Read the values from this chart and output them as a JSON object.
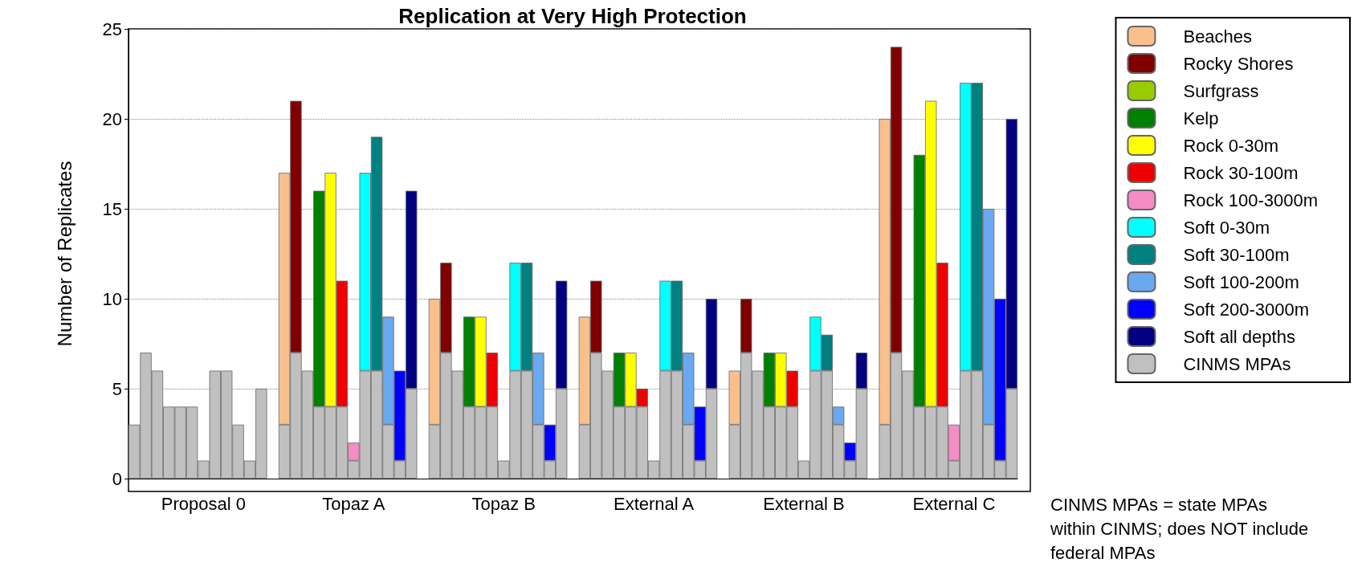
{
  "chart_data": {
    "type": "bar",
    "title": "Replication at Very High Protection",
    "ylabel": "Number of Replicates",
    "categories": [
      null,
      null,
      null,
      null,
      null,
      null,
      "Proposal 0",
      null,
      null,
      null,
      null,
      null,
      null,
      null,
      null,
      null,
      null,
      null,
      null,
      "Topaz A",
      null,
      null,
      null,
      null,
      null,
      null,
      null,
      null,
      null,
      null,
      null,
      null,
      "Topaz B",
      null,
      null,
      null,
      null,
      null,
      null,
      null,
      null,
      null,
      null,
      null,
      null,
      "External A",
      null,
      null,
      null,
      null,
      null,
      null,
      null,
      null,
      null,
      null,
      null,
      null,
      "External B",
      null,
      null,
      null,
      null,
      null,
      null,
      null,
      null,
      null,
      null,
      null,
      null,
      "External C",
      null,
      null,
      null,
      null,
      null
    ],
    "stacked": true,
    "series": [
      {
        "name": "CINMS MPAs",
        "color": "#c0c0c0",
        "values": [
          3,
          7,
          6,
          4,
          4,
          4,
          1,
          6,
          6,
          3,
          1,
          5,
          null,
          3,
          7,
          6,
          4,
          4,
          4,
          1,
          6,
          6,
          3,
          1,
          5,
          null,
          3,
          7,
          6,
          4,
          4,
          4,
          1,
          6,
          6,
          3,
          1,
          5,
          null,
          3,
          7,
          6,
          4,
          4,
          4,
          1,
          6,
          6,
          3,
          1,
          5,
          null,
          3,
          7,
          6,
          4,
          4,
          4,
          1,
          6,
          6,
          3,
          1,
          5,
          null,
          3,
          7,
          6,
          4,
          4,
          4,
          1,
          6,
          6,
          3,
          1,
          5
        ]
      },
      {
        "name": "Beaches",
        "color": "#f9c08c",
        "values": [
          null,
          null,
          null,
          null,
          null,
          null,
          null,
          null,
          null,
          null,
          null,
          null,
          null,
          14,
          null,
          null,
          null,
          null,
          null,
          null,
          null,
          null,
          null,
          null,
          null,
          null,
          7,
          null,
          null,
          null,
          null,
          null,
          null,
          null,
          null,
          null,
          null,
          null,
          null,
          6,
          null,
          null,
          null,
          null,
          null,
          null,
          null,
          null,
          null,
          null,
          null,
          null,
          3,
          null,
          null,
          null,
          null,
          null,
          null,
          null,
          null,
          null,
          null,
          null,
          null,
          17,
          null,
          null,
          null,
          null,
          null,
          null,
          null,
          null,
          null,
          null,
          null
        ]
      },
      {
        "name": "Rocky Shores",
        "color": "#800000",
        "values": [
          null,
          null,
          null,
          null,
          null,
          null,
          null,
          null,
          null,
          null,
          null,
          null,
          null,
          null,
          14,
          null,
          null,
          null,
          null,
          null,
          null,
          null,
          null,
          null,
          null,
          null,
          null,
          5,
          null,
          null,
          null,
          null,
          null,
          null,
          null,
          null,
          null,
          null,
          null,
          null,
          4,
          null,
          null,
          null,
          null,
          null,
          null,
          null,
          null,
          null,
          null,
          null,
          null,
          3,
          null,
          null,
          null,
          null,
          null,
          null,
          null,
          null,
          null,
          null,
          null,
          null,
          17,
          null,
          null,
          null,
          null,
          null,
          null,
          null,
          null,
          null,
          null
        ]
      },
      {
        "name": "Surfgrass",
        "color": "#99cc00",
        "values": [
          null,
          null,
          null,
          null,
          null,
          null,
          null,
          null,
          null,
          null,
          null,
          null,
          null,
          null,
          null,
          null,
          null,
          null,
          null,
          null,
          null,
          null,
          null,
          null,
          null,
          null,
          null,
          null,
          null,
          null,
          null,
          null,
          null,
          null,
          null,
          null,
          null,
          null,
          null,
          null,
          null,
          null,
          null,
          null,
          null,
          null,
          null,
          null,
          null,
          null,
          null,
          null,
          null,
          null,
          null,
          null,
          null,
          null,
          null,
          null,
          null,
          null,
          null,
          null,
          null,
          null,
          null,
          null,
          null,
          null,
          null,
          null,
          null,
          null,
          null,
          null,
          null
        ]
      },
      {
        "name": "Kelp",
        "color": "#008000",
        "values": [
          null,
          null,
          null,
          null,
          null,
          null,
          null,
          null,
          null,
          null,
          null,
          null,
          null,
          null,
          null,
          null,
          12,
          null,
          null,
          null,
          null,
          null,
          null,
          null,
          null,
          null,
          null,
          null,
          null,
          5,
          null,
          null,
          null,
          null,
          null,
          null,
          null,
          null,
          null,
          null,
          null,
          null,
          3,
          null,
          null,
          null,
          null,
          null,
          null,
          null,
          null,
          null,
          null,
          null,
          null,
          3,
          null,
          null,
          null,
          null,
          null,
          null,
          null,
          null,
          null,
          null,
          null,
          null,
          14,
          null,
          null,
          null,
          null,
          null,
          null,
          null,
          null
        ]
      },
      {
        "name": "Rock 0-30m",
        "color": "#ffff00",
        "values": [
          null,
          null,
          null,
          null,
          null,
          null,
          null,
          null,
          null,
          null,
          null,
          null,
          null,
          null,
          null,
          null,
          null,
          13,
          null,
          null,
          null,
          null,
          null,
          null,
          null,
          null,
          null,
          null,
          null,
          null,
          5,
          null,
          null,
          null,
          null,
          null,
          null,
          null,
          null,
          null,
          null,
          null,
          null,
          3,
          null,
          null,
          null,
          null,
          null,
          null,
          null,
          null,
          null,
          null,
          null,
          null,
          3,
          null,
          null,
          null,
          null,
          null,
          null,
          null,
          null,
          null,
          null,
          null,
          null,
          17,
          null,
          null,
          null,
          null,
          null,
          null,
          null
        ]
      },
      {
        "name": "Rock 30-100m",
        "color": "#ee0000",
        "values": [
          null,
          null,
          null,
          null,
          null,
          null,
          null,
          null,
          null,
          null,
          null,
          null,
          null,
          null,
          null,
          null,
          null,
          null,
          7,
          null,
          null,
          null,
          null,
          null,
          null,
          null,
          null,
          null,
          null,
          null,
          null,
          3,
          null,
          null,
          null,
          null,
          null,
          null,
          null,
          null,
          null,
          null,
          null,
          null,
          1,
          null,
          null,
          null,
          null,
          null,
          null,
          null,
          null,
          null,
          null,
          null,
          null,
          2,
          null,
          null,
          null,
          null,
          null,
          null,
          null,
          null,
          null,
          null,
          null,
          null,
          8,
          null,
          null,
          null,
          null,
          null,
          null
        ]
      },
      {
        "name": "Rock 100-3000m",
        "color": "#f58cc4",
        "values": [
          null,
          null,
          null,
          null,
          null,
          null,
          null,
          null,
          null,
          null,
          null,
          null,
          null,
          null,
          null,
          null,
          null,
          null,
          null,
          1,
          null,
          null,
          null,
          null,
          null,
          null,
          null,
          null,
          null,
          null,
          null,
          null,
          null,
          null,
          null,
          null,
          null,
          null,
          null,
          null,
          null,
          null,
          null,
          null,
          null,
          null,
          null,
          null,
          null,
          null,
          null,
          null,
          null,
          null,
          null,
          null,
          null,
          null,
          null,
          null,
          null,
          null,
          null,
          null,
          null,
          null,
          null,
          null,
          null,
          null,
          null,
          2,
          null,
          null,
          null,
          null,
          null
        ]
      },
      {
        "name": "Soft 0-30m",
        "color": "#00ffff",
        "values": [
          null,
          null,
          null,
          null,
          null,
          null,
          null,
          null,
          null,
          null,
          null,
          null,
          null,
          null,
          null,
          null,
          null,
          null,
          null,
          null,
          11,
          null,
          null,
          null,
          null,
          null,
          null,
          null,
          null,
          null,
          null,
          null,
          null,
          6,
          null,
          null,
          null,
          null,
          null,
          null,
          null,
          null,
          null,
          null,
          null,
          null,
          5,
          null,
          null,
          null,
          null,
          null,
          null,
          null,
          null,
          null,
          null,
          null,
          null,
          3,
          null,
          null,
          null,
          null,
          null,
          null,
          null,
          null,
          null,
          null,
          null,
          null,
          16,
          null,
          null,
          null,
          null
        ]
      },
      {
        "name": "Soft 30-100m",
        "color": "#008080",
        "values": [
          null,
          null,
          null,
          null,
          null,
          null,
          null,
          null,
          null,
          null,
          null,
          null,
          null,
          null,
          null,
          null,
          null,
          null,
          null,
          null,
          null,
          13,
          null,
          null,
          null,
          null,
          null,
          null,
          null,
          null,
          null,
          null,
          null,
          null,
          6,
          null,
          null,
          null,
          null,
          null,
          null,
          null,
          null,
          null,
          null,
          null,
          null,
          5,
          null,
          null,
          null,
          null,
          null,
          null,
          null,
          null,
          null,
          null,
          null,
          null,
          2,
          null,
          null,
          null,
          null,
          null,
          null,
          null,
          null,
          null,
          null,
          null,
          null,
          16,
          null,
          null,
          null
        ]
      },
      {
        "name": "Soft 100-200m",
        "color": "#6aa8f0",
        "values": [
          null,
          null,
          null,
          null,
          null,
          null,
          null,
          null,
          null,
          null,
          null,
          null,
          null,
          null,
          null,
          null,
          null,
          null,
          null,
          null,
          null,
          null,
          6,
          null,
          null,
          null,
          null,
          null,
          null,
          null,
          null,
          null,
          null,
          null,
          null,
          4,
          null,
          null,
          null,
          null,
          null,
          null,
          null,
          null,
          null,
          null,
          null,
          null,
          4,
          null,
          null,
          null,
          null,
          null,
          null,
          null,
          null,
          null,
          null,
          null,
          null,
          1,
          null,
          null,
          null,
          null,
          null,
          null,
          null,
          null,
          null,
          null,
          null,
          null,
          12,
          null,
          null
        ]
      },
      {
        "name": "Soft 200-3000m",
        "color": "#0000ff",
        "values": [
          null,
          null,
          null,
          null,
          null,
          null,
          null,
          null,
          null,
          null,
          null,
          null,
          null,
          null,
          null,
          null,
          null,
          null,
          null,
          null,
          null,
          null,
          null,
          5,
          null,
          null,
          null,
          null,
          null,
          null,
          null,
          null,
          null,
          null,
          null,
          null,
          2,
          null,
          null,
          null,
          null,
          null,
          null,
          null,
          null,
          null,
          null,
          null,
          null,
          3,
          null,
          null,
          null,
          null,
          null,
          null,
          null,
          null,
          null,
          null,
          null,
          null,
          1,
          null,
          null,
          null,
          null,
          null,
          null,
          null,
          null,
          null,
          null,
          null,
          null,
          9,
          null
        ]
      },
      {
        "name": "Soft all depths",
        "color": "#000080",
        "values": [
          null,
          null,
          null,
          null,
          null,
          null,
          null,
          null,
          null,
          null,
          null,
          null,
          null,
          null,
          null,
          null,
          null,
          null,
          null,
          null,
          null,
          null,
          null,
          null,
          11,
          null,
          null,
          null,
          null,
          null,
          null,
          null,
          null,
          null,
          null,
          null,
          null,
          6,
          null,
          null,
          null,
          null,
          null,
          null,
          null,
          null,
          null,
          null,
          null,
          null,
          5,
          null,
          null,
          null,
          null,
          null,
          null,
          null,
          null,
          null,
          null,
          null,
          null,
          2,
          null,
          null,
          null,
          null,
          null,
          null,
          null,
          null,
          null,
          null,
          null,
          null,
          15
        ]
      }
    ],
    "ylim": [
      0,
      25
    ],
    "yticks": [
      0,
      5,
      10,
      15,
      20,
      25
    ],
    "grid": "y",
    "legend": "right",
    "annotations": [
      "CINMS MPAs = state MPAs within CINMS; does NOT include federal MPAs"
    ]
  }
}
